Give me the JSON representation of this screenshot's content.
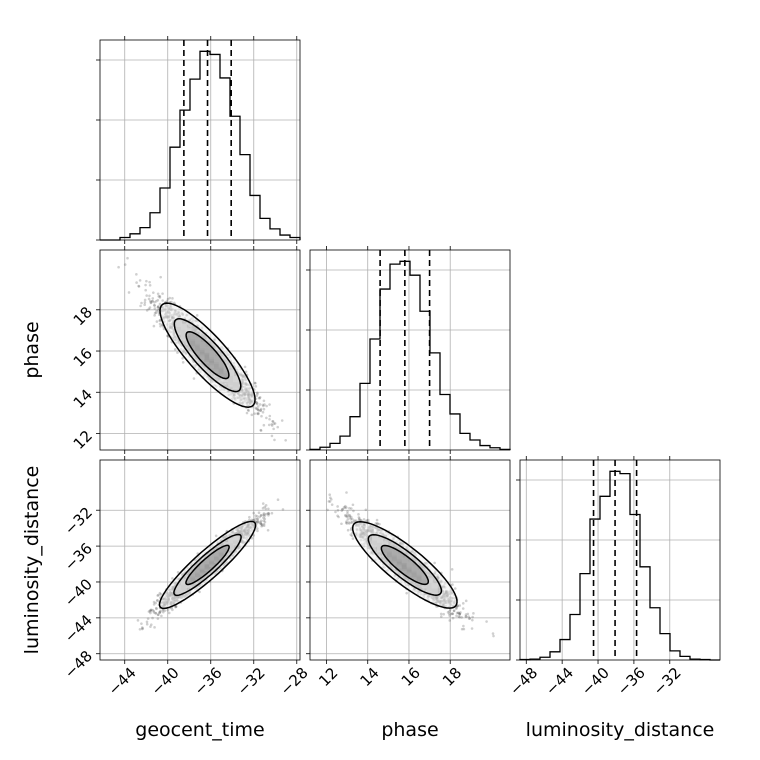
{
  "chart_data": {
    "type": "corner",
    "parameters": [
      "geocent_time",
      "phase",
      "luminosity_distance"
    ],
    "axis_labels": [
      "geocent_time",
      "phase",
      "luminosity_distance"
    ],
    "ranges": {
      "geocent_time": [
        -46.3,
        -27.7
      ],
      "phase": [
        11.2,
        20.9
      ],
      "luminosity_distance": [
        -48.7,
        -26.4
      ]
    },
    "ticks": {
      "geocent_time": [
        -44,
        -40,
        -36,
        -32,
        -28
      ],
      "phase": [
        12,
        14,
        16,
        18
      ],
      "luminosity_distance": [
        -48,
        -44,
        -40,
        -36,
        -32
      ]
    },
    "tick_labels": {
      "geocent_time": [
        "−44",
        "−40",
        "−36",
        "−32",
        "−28"
      ],
      "phase": [
        "12",
        "14",
        "16",
        "18"
      ],
      "luminosity_distance": [
        "−48",
        "−44",
        "−40",
        "−36",
        "−32"
      ]
    },
    "quantiles": {
      "geocent_time": [
        -38.5,
        -36.3,
        -34.1
      ],
      "phase": [
        14.6,
        15.8,
        17.0
      ],
      "luminosity_distance": [
        -40.5,
        -38.1,
        -35.7
      ]
    },
    "histograms": {
      "geocent_time": {
        "edges": [
          -46.3,
          -45.37,
          -44.44,
          -43.51,
          -42.58,
          -41.65,
          -40.72,
          -39.79,
          -38.86,
          -37.93,
          -37.0,
          -36.07,
          -35.14,
          -34.21,
          -33.28,
          -32.35,
          -31.42,
          -30.49,
          -29.56,
          -28.63,
          -27.7
        ],
        "counts": [
          0,
          0,
          4,
          10,
          20,
          44,
          84,
          150,
          210,
          260,
          305,
          300,
          262,
          200,
          138,
          72,
          35,
          18,
          8,
          4
        ]
      },
      "phase": {
        "edges": [
          11.2,
          11.685,
          12.17,
          12.655,
          13.14,
          13.625,
          14.11,
          14.595,
          15.08,
          15.565,
          16.05,
          16.535,
          17.02,
          17.505,
          17.99,
          18.475,
          18.96,
          19.445,
          19.93,
          20.415,
          20.9
        ],
        "counts": [
          1,
          5,
          12,
          25,
          60,
          120,
          200,
          290,
          335,
          340,
          315,
          250,
          175,
          100,
          65,
          30,
          18,
          8,
          4,
          1
        ]
      },
      "luminosity_distance": {
        "edges": [
          -48.7,
          -47.585,
          -46.47,
          -45.355,
          -44.24,
          -43.125,
          -42.01,
          -40.895,
          -39.78,
          -38.665,
          -37.55,
          -36.435,
          -35.32,
          -34.205,
          -33.09,
          -31.975,
          -30.86,
          -29.745,
          -28.63,
          -27.515,
          -26.4
        ],
        "counts": [
          1,
          2,
          6,
          18,
          45,
          100,
          190,
          310,
          360,
          415,
          410,
          320,
          205,
          115,
          58,
          20,
          8,
          2,
          1,
          0
        ]
      }
    },
    "correlations": {
      "geocent_time|phase": -0.93,
      "geocent_time|luminosity_distance": 0.96,
      "phase|luminosity_distance": -0.93
    },
    "sigma": {
      "geocent_time": 2.2,
      "phase": 1.2,
      "luminosity_distance": 2.4
    },
    "grid": true
  }
}
